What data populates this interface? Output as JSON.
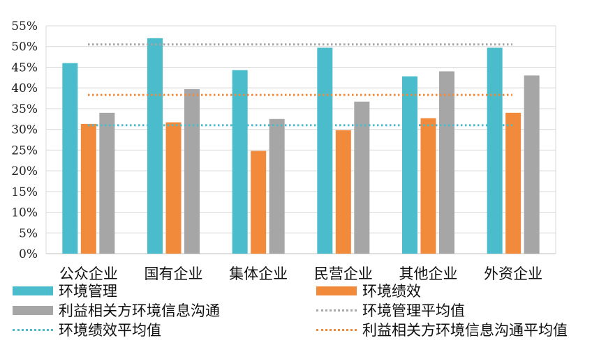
{
  "chart_data": {
    "type": "bar",
    "categories": [
      "公众企业",
      "国有企业",
      "集体企业",
      "民营企业",
      "其他企业",
      "外资企业"
    ],
    "series": [
      {
        "name": "环境管理",
        "color": "#4bbccb",
        "values": [
          46,
          52,
          44.3,
          49.7,
          42.8,
          49.7
        ]
      },
      {
        "name": "环境绩效",
        "color": "#f28a3c",
        "values": [
          31.3,
          31.7,
          24.8,
          29.8,
          32.7,
          34
        ]
      },
      {
        "name": "利益相关方环境信息沟通",
        "color": "#a6a6a6",
        "values": [
          34,
          39.7,
          32.5,
          36.7,
          44,
          43
        ]
      }
    ],
    "averages": [
      {
        "name": "环境管理平均值",
        "color": "#a6a6a6",
        "value": 50.5
      },
      {
        "name": "环境绩效平均值",
        "color": "#4bbccb",
        "value": 31
      },
      {
        "name": "利益相关方环境信息沟通平均值",
        "color": "#f28a3c",
        "value": 38.3
      }
    ],
    "yticks": [
      "0%",
      "5%",
      "10%",
      "15%",
      "20%",
      "25%",
      "30%",
      "35%",
      "40%",
      "45%",
      "50%",
      "55%"
    ],
    "ylim": [
      0,
      55
    ],
    "grid": true,
    "legend_position": "bottom"
  }
}
